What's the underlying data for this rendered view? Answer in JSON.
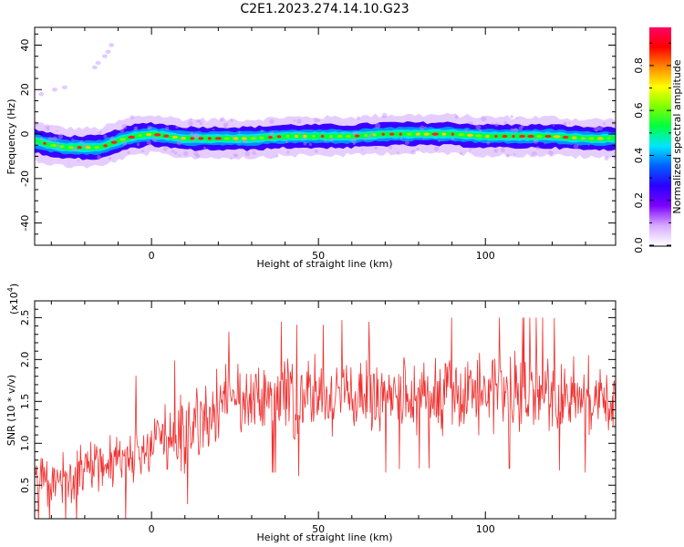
{
  "title": "C2E1.2023.274.14.10.G23",
  "spectrogram": {
    "xlabel": "Height of straight line (km)",
    "ylabel": "Frequency (Hz)",
    "xlim": [
      -35,
      139
    ],
    "ylim": [
      -50,
      48
    ],
    "xticks": [
      0,
      50,
      100
    ],
    "yticks": [
      -40,
      -20,
      0,
      20,
      40
    ],
    "colorbar": {
      "label": "Normalized spectral amplitude",
      "range": [
        0,
        0.97
      ],
      "ticks": [
        0.0,
        0.2,
        0.4,
        0.6,
        0.8
      ],
      "tick_labels": [
        "0.0",
        "0.2",
        "0.4",
        "0.6",
        "0.8"
      ],
      "colors": [
        "#ffffff",
        "#d6a8ff",
        "#7a00ff",
        "#2a00ff",
        "#0060ff",
        "#00e6ff",
        "#00ff40",
        "#7fff00",
        "#ffff00",
        "#ff8800",
        "#ff0000",
        "#ff0066"
      ]
    },
    "ridge_km": [
      -35,
      -30,
      -25,
      -20,
      -15,
      -10,
      -5,
      0,
      5,
      10,
      20,
      30,
      40,
      50,
      60,
      70,
      80,
      90,
      100,
      110,
      120,
      130,
      139
    ],
    "ridge_hz": [
      -3,
      -5,
      -6,
      -6,
      -6,
      -3,
      -1,
      0,
      -1,
      -2,
      -2,
      -2,
      -1,
      -1,
      -1,
      0,
      0,
      0,
      -1,
      -1,
      -1,
      -2,
      -2
    ]
  },
  "chart_data": {
    "type": "line",
    "xlabel": "Height of straight line (km)",
    "ylabel": "SNR (10 * v/v)",
    "y_multiplier": "(x10",
    "y_multiplier_exp": "4",
    "y_multiplier_close": ")",
    "xlim": [
      -35,
      139
    ],
    "ylim": [
      0.1,
      2.7
    ],
    "xticks": [
      0,
      50,
      100
    ],
    "yticks": [
      0.5,
      1.0,
      1.5,
      2.0,
      2.5
    ],
    "ytick_labels": [
      "0.5",
      "1.0",
      "1.5",
      "2.0",
      "2.5"
    ],
    "line_color": "#f03030",
    "series": [
      {
        "x": [
          -35,
          -30,
          -25,
          -20,
          -15,
          -10,
          -5,
          0,
          5,
          10,
          15,
          20,
          25,
          30,
          35,
          40,
          45,
          50,
          55,
          60,
          65,
          70,
          75,
          80,
          85,
          90,
          95,
          100,
          105,
          110,
          115,
          120,
          125,
          130,
          135,
          139
        ],
        "y": [
          0.6,
          0.55,
          0.6,
          0.65,
          0.75,
          0.8,
          0.9,
          1.0,
          1.05,
          1.15,
          1.3,
          1.4,
          1.45,
          1.5,
          1.55,
          1.55,
          1.5,
          1.5,
          1.55,
          1.6,
          1.55,
          1.55,
          1.6,
          1.6,
          1.6,
          1.6,
          1.6,
          1.6,
          1.6,
          1.6,
          1.6,
          1.6,
          1.55,
          1.55,
          1.55,
          1.5
        ]
      }
    ]
  }
}
